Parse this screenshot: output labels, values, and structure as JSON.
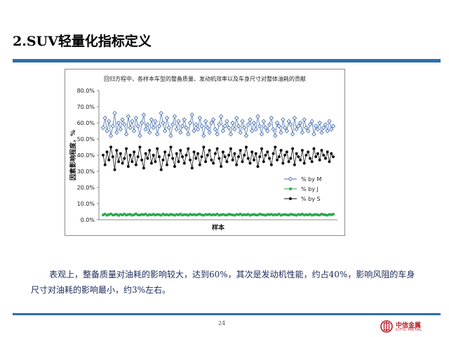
{
  "slide": {
    "title": "2.SUV轻量化指标定义",
    "page_number": "24",
    "body_text": "表观上，整备质量对油耗的影响较大，达到60%，其次是发动机性能，约占40%，影响风阻的车身尺寸对油耗的影响最小，约3%左右。",
    "accent_color": "#2e6eb0"
  },
  "logo": {
    "name": "中信金属",
    "english": "CITIC METAL",
    "color": "#b8202a"
  },
  "chart_data": {
    "type": "line",
    "title": "回归方程中，各样本车型的整备质量、发动机效率以及车身尺寸对整体油耗的贡献",
    "xlabel": "样本",
    "ylabel": "因素影响程度，%",
    "ylim": [
      0.0,
      80.0
    ],
    "yticks": [
      "0.0%",
      "10.0%",
      "20.0%",
      "30.0%",
      "40.0%",
      "50.0%",
      "60.0%",
      "70.0%",
      "80.0%"
    ],
    "grid": false,
    "legend_position": "right-bottom",
    "x": [
      1,
      2,
      3,
      4,
      5,
      6,
      7,
      8,
      9,
      10,
      11,
      12,
      13,
      14,
      15,
      16,
      17,
      18,
      19,
      20,
      21,
      22,
      23,
      24,
      25,
      26,
      27,
      28,
      29,
      30,
      31,
      32,
      33,
      34,
      35,
      36,
      37,
      38,
      39,
      40,
      41,
      42,
      43,
      44,
      45,
      46,
      47,
      48,
      49,
      50,
      51,
      52,
      53,
      54,
      55,
      56,
      57,
      58,
      59,
      60,
      61,
      62,
      63,
      64,
      65,
      66,
      67,
      68,
      69,
      70,
      71,
      72,
      73,
      74,
      75,
      76,
      77,
      78,
      79,
      80,
      81,
      82,
      83,
      84,
      85,
      86,
      87,
      88,
      89,
      90,
      91,
      92,
      93,
      94,
      95,
      96,
      97,
      98,
      99,
      100,
      101,
      102,
      103,
      104,
      105,
      106,
      107,
      108,
      109,
      110,
      111,
      112,
      113,
      114,
      115,
      116,
      117,
      118,
      119,
      120
    ],
    "series": [
      {
        "name": "% by M",
        "color": "#4a72b0",
        "marker": "diamond-open",
        "values": [
          57,
          63,
          55,
          61,
          52,
          58,
          66,
          54,
          60,
          56,
          62,
          59,
          53,
          64,
          57,
          61,
          55,
          63,
          58,
          52,
          60,
          65,
          56,
          59,
          54,
          62,
          57,
          61,
          53,
          58,
          66,
          60,
          55,
          63,
          57,
          52,
          59,
          64,
          56,
          61,
          54,
          58,
          62,
          57,
          53,
          60,
          65,
          55,
          59,
          56,
          63,
          58,
          52,
          61,
          57,
          54,
          60,
          62,
          56,
          53,
          59,
          64,
          55,
          58,
          61,
          57,
          53,
          60,
          56,
          63,
          58,
          54,
          61,
          57,
          52,
          59,
          62,
          55,
          60,
          56,
          64,
          58,
          53,
          61,
          57,
          55,
          59,
          63,
          56,
          52,
          60,
          58,
          54,
          62,
          57,
          55,
          61,
          59,
          53,
          63,
          56,
          58,
          60,
          54,
          62,
          57,
          55,
          59,
          61,
          53,
          58,
          56,
          60,
          54,
          57,
          59,
          55,
          61,
          56,
          58
        ]
      },
      {
        "name": "% by J",
        "color": "#2aa84a",
        "marker": "square",
        "values": [
          3.0,
          3.5,
          2.8,
          3.2,
          3.6,
          2.9,
          3.1,
          3.4,
          2.7,
          3.3,
          3.0,
          3.5,
          2.9,
          3.2,
          3.4,
          2.8,
          3.1,
          3.6,
          3.0,
          2.9,
          3.3,
          3.1,
          3.5,
          2.8,
          3.2,
          3.0,
          3.4,
          2.9,
          3.3,
          3.1,
          2.8,
          3.5,
          3.0,
          3.2,
          2.9,
          3.4,
          3.1,
          2.8,
          3.3,
          3.0,
          3.5,
          2.9,
          3.2,
          3.1,
          2.8,
          3.4,
          3.0,
          3.3,
          2.9,
          3.2,
          3.5,
          3.0,
          2.8,
          3.3,
          3.1,
          3.4,
          2.9,
          3.2,
          3.0,
          3.5,
          2.8,
          3.1,
          3.3,
          3.0,
          2.9,
          3.4,
          3.2,
          3.0,
          2.8,
          3.3,
          3.1,
          3.5,
          2.9,
          3.2,
          3.0,
          3.4,
          2.8,
          3.1,
          3.3,
          3.0,
          2.9,
          3.5,
          3.2,
          3.0,
          2.8,
          3.3,
          3.1,
          3.4,
          2.9,
          3.2,
          3.0,
          3.5,
          2.8,
          3.1,
          3.3,
          3.0,
          2.9,
          3.4,
          3.2,
          3.0,
          2.8,
          3.3,
          3.1,
          3.5,
          2.9,
          3.2,
          3.0,
          3.4,
          2.8,
          3.1,
          3.3,
          3.0,
          2.9,
          3.5,
          3.2,
          3.0,
          2.8,
          3.3,
          3.1,
          3.4
        ]
      },
      {
        "name": "% by S",
        "color": "#111111",
        "marker": "circle",
        "values": [
          40,
          34,
          42,
          37,
          45,
          39,
          31,
          43,
          36,
          41,
          35,
          38,
          44,
          33,
          40,
          36,
          42,
          34,
          39,
          45,
          37,
          32,
          41,
          38,
          43,
          35,
          40,
          36,
          44,
          39,
          31,
          37,
          42,
          34,
          40,
          45,
          38,
          33,
          41,
          36,
          43,
          39,
          35,
          40,
          44,
          37,
          32,
          42,
          38,
          41,
          34,
          39,
          45,
          36,
          40,
          43,
          37,
          35,
          41,
          44,
          38,
          33,
          42,
          39,
          36,
          40,
          44,
          37,
          41,
          34,
          39,
          43,
          36,
          40,
          45,
          38,
          35,
          42,
          37,
          41,
          33,
          39,
          44,
          36,
          40,
          42,
          38,
          34,
          41,
          45,
          37,
          39,
          43,
          35,
          40,
          42,
          36,
          38,
          44,
          34,
          41,
          39,
          37,
          43,
          35,
          40,
          42,
          38,
          36,
          44,
          39,
          41,
          37,
          43,
          40,
          38,
          42,
          36,
          41,
          39
        ]
      }
    ]
  }
}
